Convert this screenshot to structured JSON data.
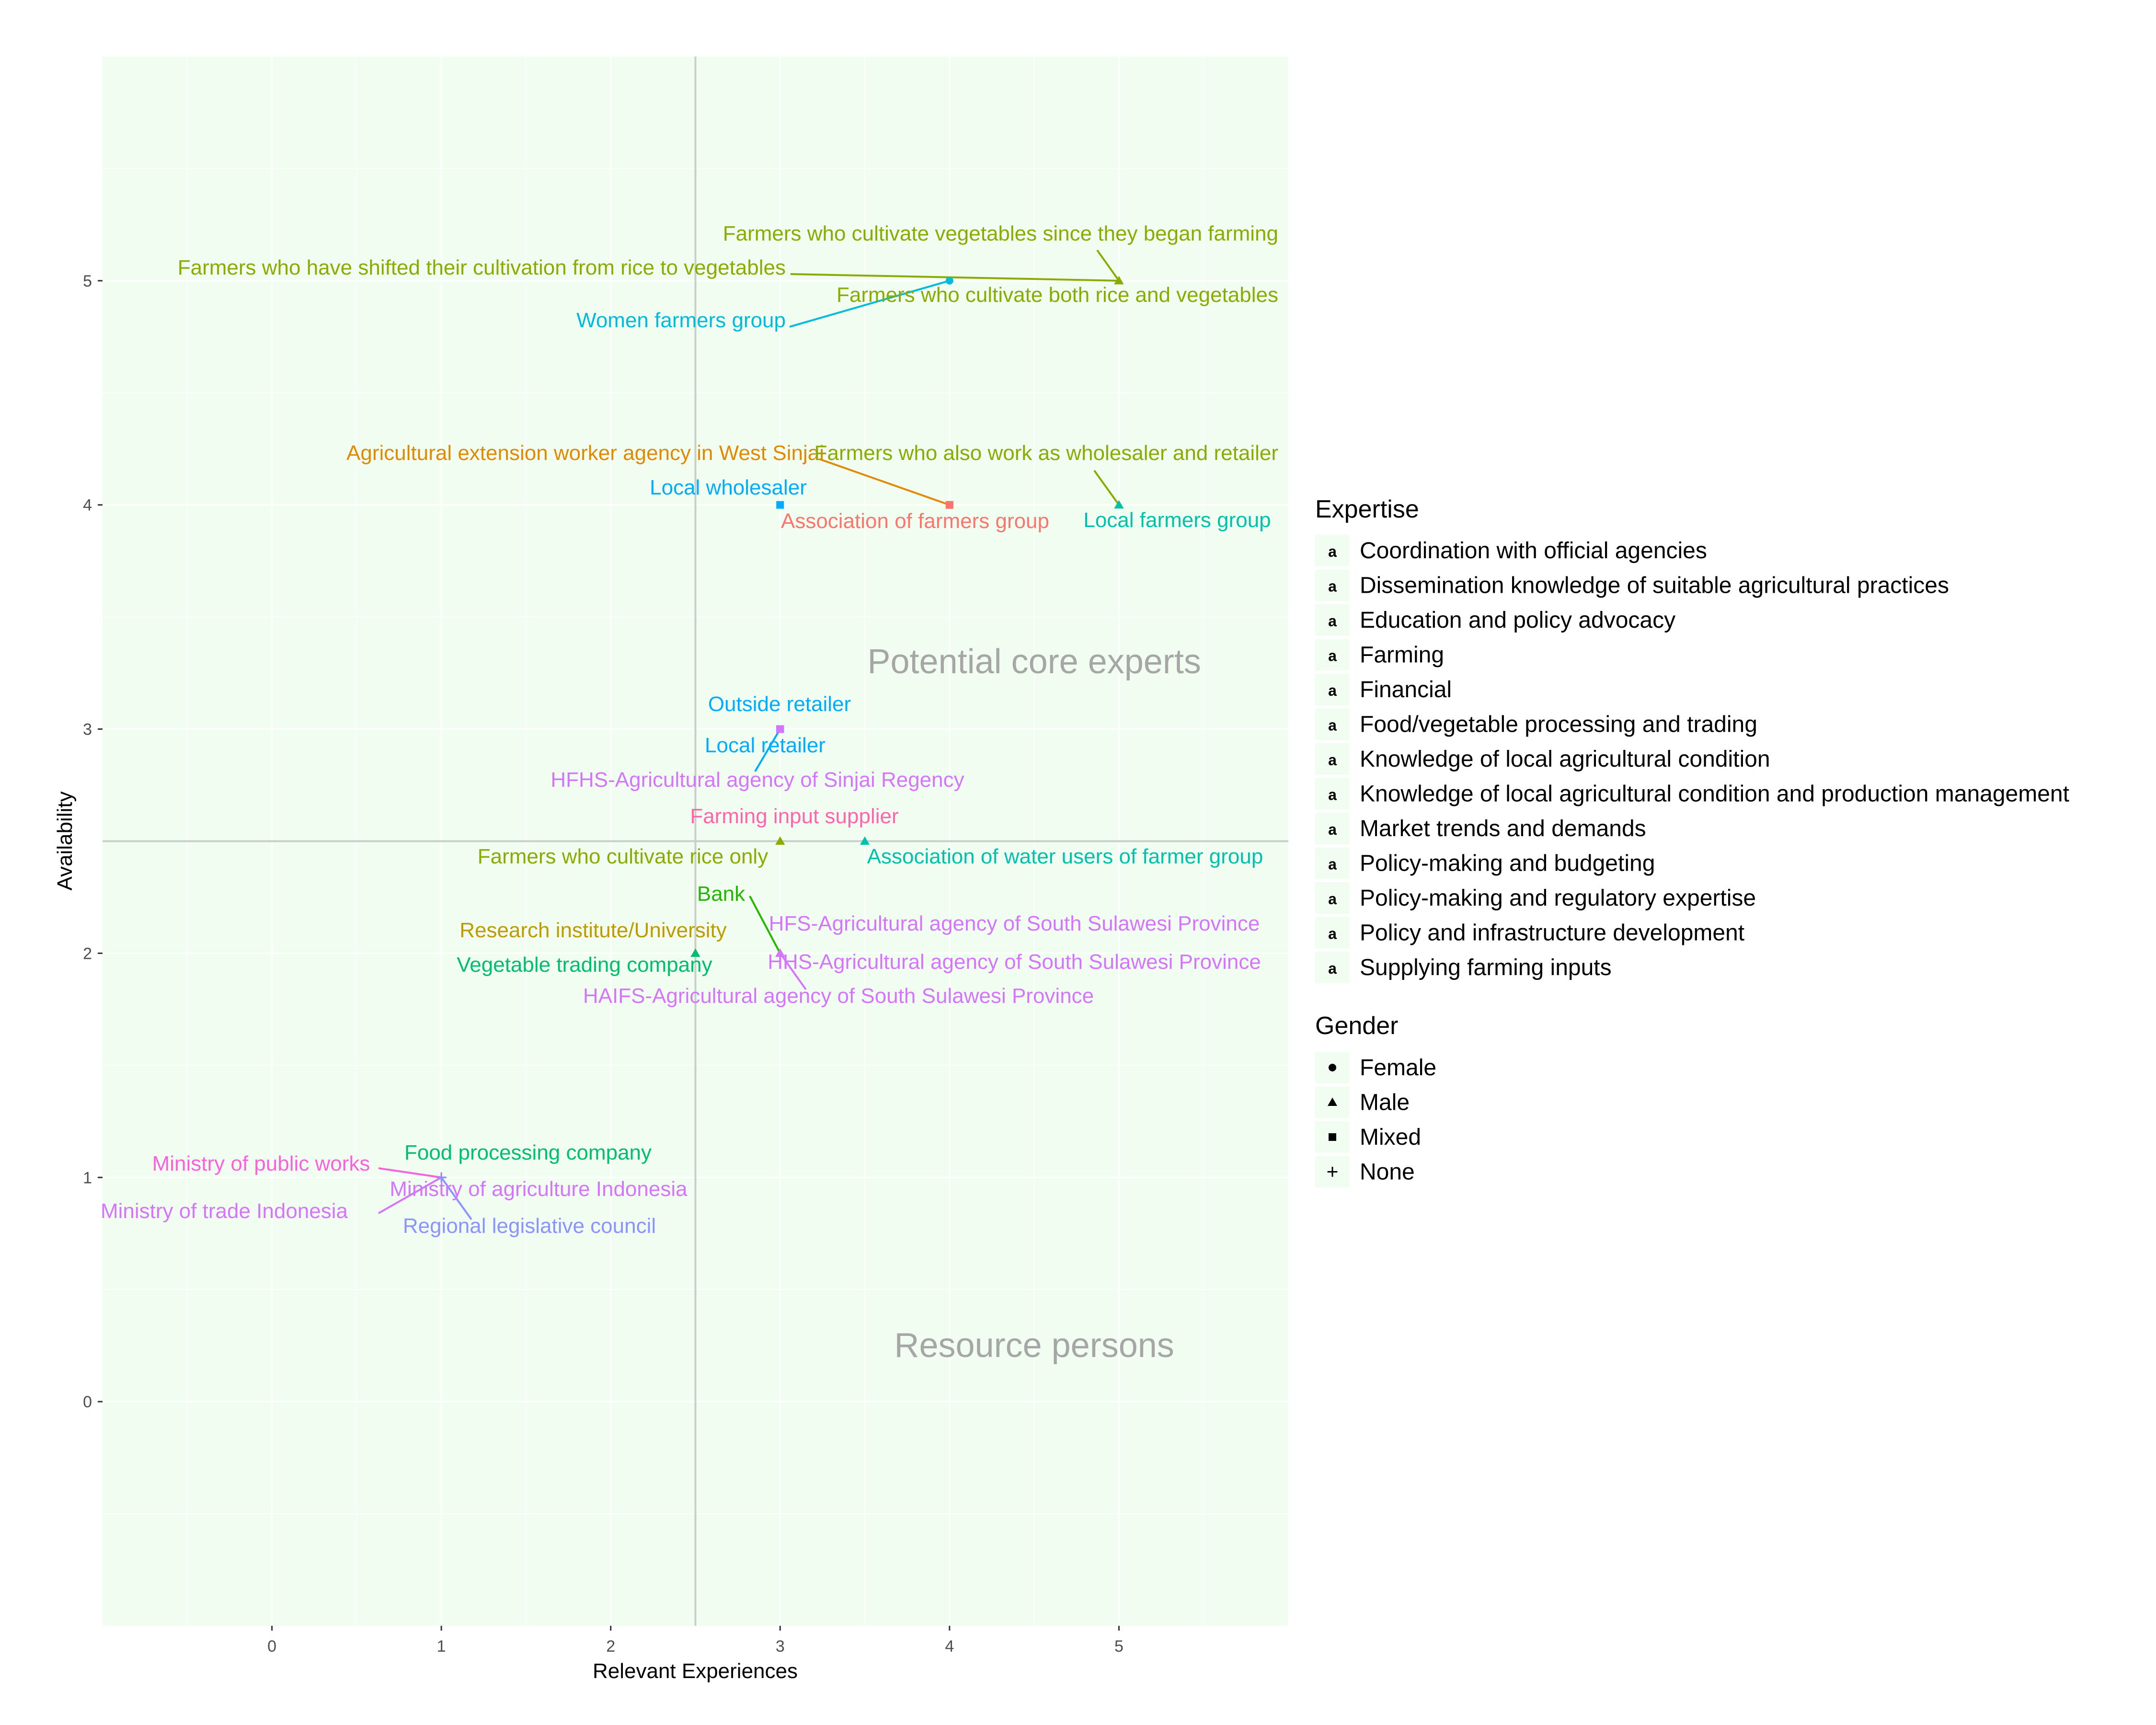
{
  "chart_data": {
    "type": "scatter",
    "xlabel": "Relevant Experiences",
    "ylabel": "Availability",
    "xlim": [
      -1,
      6
    ],
    "ylim": [
      -1,
      6
    ],
    "x_ticks": [
      0,
      1,
      2,
      3,
      4,
      5
    ],
    "y_ticks": [
      0,
      1,
      2,
      3,
      4,
      5
    ],
    "x_tick_labels": [
      "0",
      "1",
      "2",
      "3",
      "4",
      "5"
    ],
    "y_tick_labels": [
      "0",
      "1",
      "2",
      "3",
      "4",
      "5"
    ],
    "grid": true,
    "background": "#f0fdf0",
    "reference_lines": {
      "x": 2.5,
      "y": 2.5
    },
    "region_labels": [
      {
        "text": "Potential core experts",
        "x": 4.5,
        "y": 3.3
      },
      {
        "text": "Resource persons",
        "x": 4.5,
        "y": 0.25
      }
    ],
    "legend_position": "right",
    "expertise_legend": {
      "title": "Expertise",
      "items": [
        {
          "label": "Coordination with official agencies",
          "color": "#F8766D"
        },
        {
          "label": "Dissemination knowledge of suitable agricultural practices",
          "color": "#E18A00"
        },
        {
          "label": "Education and policy advocacy",
          "color": "#BE9C00"
        },
        {
          "label": "Farming",
          "color": "#8CAB00"
        },
        {
          "label": "Financial",
          "color": "#24B700"
        },
        {
          "label": "Food/vegetable processing and trading",
          "color": "#00BE70"
        },
        {
          "label": "Knowledge of local agricultural condition",
          "color": "#00C1AB"
        },
        {
          "label": "Knowledge of local agricultural condition and production management",
          "color": "#00BBDA"
        },
        {
          "label": "Market trends and demands",
          "color": "#00ACFC"
        },
        {
          "label": "Policy-making and budgeting",
          "color": "#8B93FF"
        },
        {
          "label": "Policy-making and regulatory expertise",
          "color": "#D575FE"
        },
        {
          "label": "Policy and infrastructure development",
          "color": "#F962DD"
        },
        {
          "label": "Supplying farming inputs",
          "color": "#FF65AC"
        }
      ]
    },
    "gender_legend": {
      "title": "Gender",
      "items": [
        {
          "label": "Female",
          "shape": "circle"
        },
        {
          "label": "Male",
          "shape": "triangle"
        },
        {
          "label": "Mixed",
          "shape": "square"
        },
        {
          "label": "None",
          "shape": "plus"
        }
      ]
    },
    "points": [
      {
        "name": "Farmers who cultivate vegetables since they began farming",
        "x": 5,
        "y": 5,
        "expertise": 3,
        "shape": "triangle"
      },
      {
        "name": "Farmers who have shifted their cultivation from rice to vegetables",
        "x": 5,
        "y": 5,
        "expertise": 3,
        "shape": "triangle"
      },
      {
        "name": "Farmers who cultivate both rice and vegetables",
        "x": 5,
        "y": 5,
        "expertise": 3,
        "shape": "triangle"
      },
      {
        "name": "Women farmers group",
        "x": 4,
        "y": 5,
        "expertise": 7,
        "shape": "circle"
      },
      {
        "name": "Agricultural extension worker agency in West Sinjai",
        "x": 4,
        "y": 4,
        "expertise": 1,
        "shape": "square"
      },
      {
        "name": "Association of farmers group",
        "x": 4,
        "y": 4,
        "expertise": 0,
        "shape": "square"
      },
      {
        "name": "Farmers who also work as wholesaler and retailer",
        "x": 5,
        "y": 4,
        "expertise": 3,
        "shape": "triangle"
      },
      {
        "name": "Local farmers group",
        "x": 5,
        "y": 4,
        "expertise": 6,
        "shape": "triangle"
      },
      {
        "name": "Local wholesaler",
        "x": 3,
        "y": 4,
        "expertise": 8,
        "shape": "square"
      },
      {
        "name": "Outside retailer",
        "x": 3,
        "y": 3,
        "expertise": 8,
        "shape": "square"
      },
      {
        "name": "Local retailer",
        "x": 3,
        "y": 3,
        "expertise": 8,
        "shape": "square"
      },
      {
        "name": "HFHS-Agricultural agency of Sinjai Regency",
        "x": 3,
        "y": 3,
        "expertise": 10,
        "shape": "square"
      },
      {
        "name": "Farming input supplier",
        "x": 3,
        "y": 2.5,
        "expertise": 12,
        "shape": "triangle"
      },
      {
        "name": "Farmers who cultivate rice only",
        "x": 3,
        "y": 2.5,
        "expertise": 3,
        "shape": "triangle"
      },
      {
        "name": "Association of water users of farmer group",
        "x": 3.5,
        "y": 2.5,
        "expertise": 6,
        "shape": "triangle"
      },
      {
        "name": "Bank",
        "x": 3,
        "y": 2,
        "expertise": 4,
        "shape": "triangle"
      },
      {
        "name": "HFS-Agricultural agency of South Sulawesi Province",
        "x": 3,
        "y": 2,
        "expertise": 10,
        "shape": "triangle"
      },
      {
        "name": "HHS-Agricultural agency of South Sulawesi Province",
        "x": 3,
        "y": 2,
        "expertise": 10,
        "shape": "triangle"
      },
      {
        "name": "HAIFS-Agricultural agency of South Sulawesi Province",
        "x": 3,
        "y": 2,
        "expertise": 10,
        "shape": "triangle"
      },
      {
        "name": "Research institute/University",
        "x": 2.5,
        "y": 2,
        "expertise": 2,
        "shape": "triangle"
      },
      {
        "name": "Vegetable trading company",
        "x": 2.5,
        "y": 2,
        "expertise": 5,
        "shape": "triangle"
      },
      {
        "name": "Food processing company",
        "x": 1,
        "y": 1,
        "expertise": 5,
        "shape": "plus"
      },
      {
        "name": "Ministry of public works",
        "x": 1,
        "y": 1,
        "expertise": 11,
        "shape": "plus"
      },
      {
        "name": "Ministry of agriculture Indonesia",
        "x": 1,
        "y": 1,
        "expertise": 10,
        "shape": "plus"
      },
      {
        "name": "Ministry of trade Indonesia",
        "x": 1,
        "y": 1,
        "expertise": 10,
        "shape": "plus"
      },
      {
        "name": "Regional legislative council",
        "x": 1,
        "y": 1,
        "expertise": 9,
        "shape": "plus"
      }
    ]
  }
}
